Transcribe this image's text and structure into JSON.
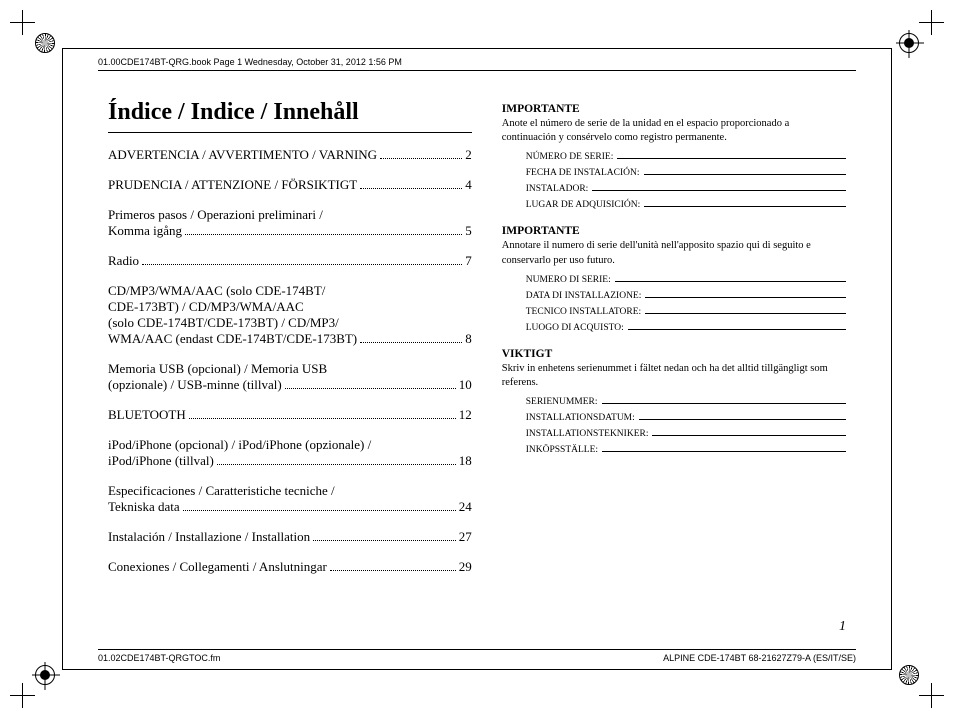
{
  "header_text": "01.00CDE174BT-QRG.book  Page 1  Wednesday, October 31, 2012  1:56 PM",
  "footer_left": "01.02CDE174BT-QRGTOC.fm",
  "footer_right": "ALPINE CDE-174BT 68-21627Z79-A (ES/IT/SE)",
  "title": "Índice / Indice / Innehåll",
  "page_number": "1",
  "toc": [
    {
      "label": "ADVERTENCIA / AVVERTIMENTO / VARNING",
      "page": "2"
    },
    {
      "label": "PRUDENCIA / ATTENZIONE / FÖRSIKTIGT",
      "page": "4"
    },
    {
      "label_lines": [
        "Primeros pasos / Operazioni preliminari /",
        "Komma igång"
      ],
      "page": "5"
    },
    {
      "label": "Radio",
      "page": "7"
    },
    {
      "label_lines": [
        "CD/MP3/WMA/AAC (solo CDE-174BT/",
        "CDE-173BT) / CD/MP3/WMA/AAC",
        "(solo CDE-174BT/CDE-173BT) / CD/MP3/",
        "WMA/AAC (endast CDE-174BT/CDE-173BT)"
      ],
      "page": "8"
    },
    {
      "label_lines": [
        "Memoria USB (opcional) / Memoria USB",
        "(opzionale) / USB-minne (tillval)"
      ],
      "page": "10"
    },
    {
      "label": "BLUETOOTH",
      "page": "12"
    },
    {
      "label_lines": [
        "iPod/iPhone (opcional) / iPod/iPhone (opzionale) /",
        "iPod/iPhone (tillval)"
      ],
      "page": "18"
    },
    {
      "label_lines": [
        "Especificaciones / Caratteristiche tecniche /",
        "Tekniska data"
      ],
      "page": "24"
    },
    {
      "label": "Instalación / Installazione / Installation",
      "page": "27"
    },
    {
      "label": "Conexiones / Collegamenti / Anslutningar",
      "page": "29"
    }
  ],
  "sections": [
    {
      "title": "IMPORTANTE",
      "desc": "Anote el número de serie de la unidad en el espacio proporcionado a continuación y consérvelo como registro permanente.",
      "fields": [
        "NÚMERO DE SERIE:",
        "FECHA DE INSTALACIÓN:",
        "INSTALADOR:",
        "LUGAR DE ADQUISICIÓN:"
      ]
    },
    {
      "title": "IMPORTANTE",
      "desc": "Annotare il numero di serie dell'unità nell'apposito spazio qui di seguito e conservarlo per uso futuro.",
      "fields": [
        "NUMERO DI SERIE:",
        "DATA DI INSTALLAZIONE:",
        "TECNICO INSTALLATORE:",
        "LUOGO DI ACQUISTO:"
      ]
    },
    {
      "title": "VIKTIGT",
      "desc": "Skriv in enhetens serienummet i fältet nedan och ha det alltid tillgängligt som referens.",
      "fields": [
        "SERIENUMMER:",
        "INSTALLATIONSDATUM:",
        "INSTALLATIONSTEKNIKER:",
        "INKÖPSSTÄLLE:"
      ]
    }
  ]
}
